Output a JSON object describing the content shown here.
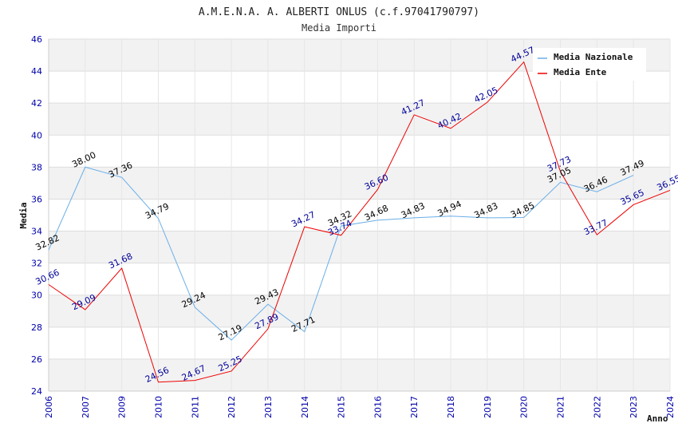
{
  "chart_data": {
    "type": "line",
    "title": "A.M.E.N.A. A. ALBERTI ONLUS (c.f.97041790797)",
    "subtitle": "Media Importi",
    "xlabel": "Anno",
    "ylabel": "Media",
    "ylim": [
      24,
      46
    ],
    "yticks": [
      24,
      26,
      28,
      30,
      32,
      34,
      36,
      38,
      40,
      42,
      44,
      46
    ],
    "categories": [
      "2006",
      "2007",
      "2009",
      "2010",
      "2011",
      "2012",
      "2013",
      "2014",
      "2015",
      "2016",
      "2017",
      "2018",
      "2019",
      "2020",
      "2021",
      "2022",
      "2023",
      "2024"
    ],
    "grid": "horizontal-banded",
    "legend_position": "top-right",
    "series": [
      {
        "name": "Media Nazionale",
        "color": "#6aaee8",
        "label_color": "#000000",
        "values": [
          32.82,
          38.0,
          37.36,
          34.79,
          29.24,
          27.19,
          29.43,
          27.71,
          34.32,
          34.68,
          34.83,
          34.94,
          34.83,
          34.85,
          37.05,
          36.46,
          37.49,
          null
        ],
        "labels": [
          "32.82",
          "38.00",
          "37.36",
          "34.79",
          "29.24",
          "27.19",
          "29.43",
          "27.71",
          "34.32",
          "34.68",
          "34.83",
          "34.94",
          "34.83",
          "34.85",
          "37.05",
          "36.46",
          "37.49",
          null
        ]
      },
      {
        "name": "Media Ente",
        "color": "#ee0000",
        "label_color": "#000099",
        "values": [
          30.66,
          29.09,
          31.68,
          24.56,
          24.67,
          25.25,
          27.89,
          34.27,
          33.74,
          36.6,
          41.27,
          40.42,
          42.05,
          44.57,
          37.73,
          33.77,
          35.65,
          36.55
        ],
        "labels": [
          "30.66",
          "29.09",
          "31.68",
          "24.56",
          "24.67",
          "25.25",
          "27.89",
          "34.27",
          "33.74",
          "36.60",
          "41.27",
          "40.42",
          "42.05",
          "44.57",
          "37.73",
          "33.77",
          "35.65",
          "36.55"
        ]
      }
    ]
  },
  "colors": {
    "tick_text": "#0000aa",
    "band": "#f2f2f2",
    "grid_line": "#dddddd",
    "axis": "#cccccc"
  }
}
